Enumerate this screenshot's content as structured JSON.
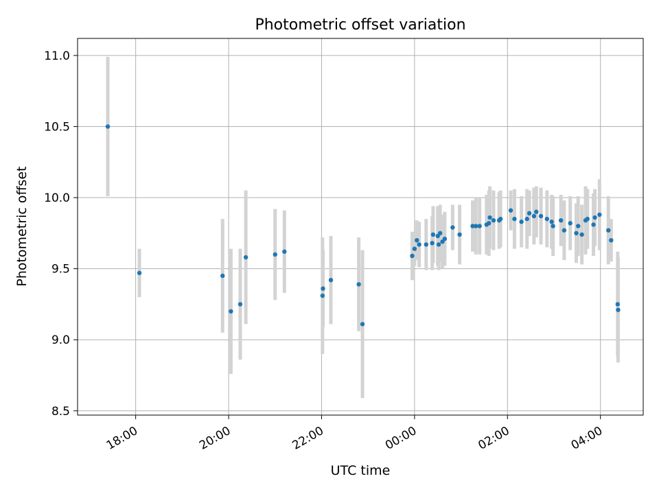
{
  "chart_data": {
    "type": "scatter",
    "title": "Photometric offset variation",
    "xlabel": "UTC time",
    "ylabel": "Photometric offset",
    "x_unit": "UTC time (hours, continuous across midnight: 24.00 = 00:00, 28.00 = 04:00)",
    "xlim": [
      16.75,
      28.92
    ],
    "ylim": [
      8.47,
      11.12
    ],
    "xticks": [
      18,
      20,
      22,
      24,
      26,
      28
    ],
    "xtick_labels": [
      "18:00",
      "20:00",
      "22:00",
      "00:00",
      "02:00",
      "04:00"
    ],
    "yticks": [
      8.5,
      9.0,
      9.5,
      10.0,
      10.5,
      11.0
    ],
    "ytick_labels": [
      "8.5",
      "9.0",
      "9.5",
      "10.0",
      "10.5",
      "11.0"
    ],
    "grid": true,
    "legend": "none",
    "colors": {
      "points": "#1f77b4",
      "errorbars": "#d3d3d3",
      "grid": "#b0b0b0"
    },
    "series": [
      {
        "x": [
          17.4,
          18.08,
          19.87,
          20.05,
          20.25,
          20.37,
          21.0,
          21.2,
          22.02,
          22.03,
          22.2,
          22.8,
          22.88,
          23.95,
          24.0,
          24.05,
          24.1,
          24.25,
          24.38,
          24.4,
          24.5,
          24.52,
          24.55,
          24.6,
          24.65,
          24.82,
          24.97,
          25.25,
          25.32,
          25.4,
          25.55,
          25.6,
          25.62,
          25.7,
          25.82,
          25.85,
          26.07,
          26.15,
          26.3,
          26.42,
          26.47,
          26.57,
          26.62,
          26.72,
          26.85,
          26.95,
          26.98,
          27.15,
          27.22,
          27.35,
          27.48,
          27.52,
          27.6,
          27.68,
          27.72,
          27.85,
          27.88,
          27.98,
          28.17,
          28.23,
          28.37,
          28.38
        ],
        "y": [
          10.5,
          9.47,
          9.45,
          9.2,
          9.25,
          9.58,
          9.6,
          9.62,
          9.31,
          9.36,
          9.42,
          9.39,
          9.11,
          9.59,
          9.64,
          9.7,
          9.67,
          9.67,
          9.68,
          9.74,
          9.73,
          9.67,
          9.75,
          9.69,
          9.71,
          9.79,
          9.74,
          9.8,
          9.8,
          9.8,
          9.81,
          9.82,
          9.86,
          9.84,
          9.84,
          9.85,
          9.91,
          9.85,
          9.83,
          9.85,
          9.89,
          9.87,
          9.9,
          9.87,
          9.85,
          9.83,
          9.8,
          9.84,
          9.77,
          9.82,
          9.75,
          9.8,
          9.74,
          9.84,
          9.85,
          9.81,
          9.86,
          9.88,
          9.77,
          9.7,
          9.25,
          9.21
        ],
        "yerr": [
          0.49,
          0.17,
          0.4,
          0.44,
          0.39,
          0.47,
          0.32,
          0.29,
          0.41,
          0.27,
          0.31,
          0.33,
          0.52,
          0.17,
          0.12,
          0.14,
          0.16,
          0.18,
          0.19,
          0.2,
          0.21,
          0.18,
          0.2,
          0.19,
          0.19,
          0.16,
          0.21,
          0.18,
          0.2,
          0.2,
          0.21,
          0.23,
          0.22,
          0.21,
          0.2,
          0.2,
          0.14,
          0.21,
          0.18,
          0.21,
          0.16,
          0.2,
          0.18,
          0.2,
          0.2,
          0.19,
          0.21,
          0.18,
          0.21,
          0.19,
          0.21,
          0.21,
          0.21,
          0.24,
          0.21,
          0.22,
          0.2,
          0.25,
          0.24,
          0.15,
          0.37,
          0.37
        ]
      }
    ]
  }
}
